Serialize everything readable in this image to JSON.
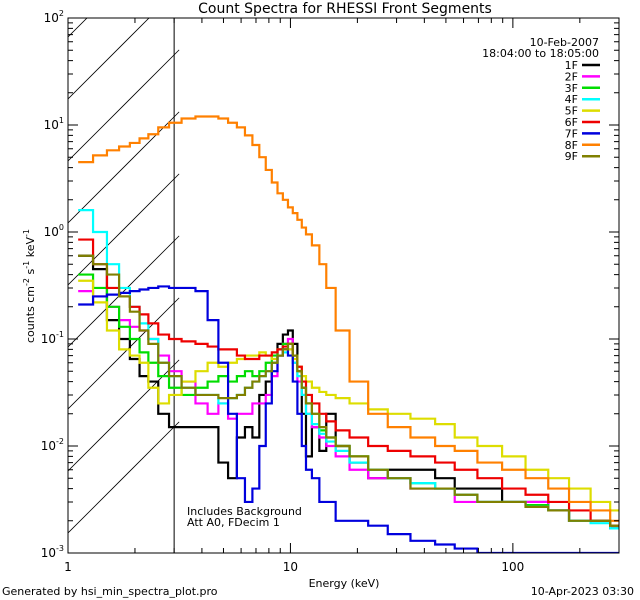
{
  "chart_data": {
    "type": "line",
    "title": "Count Spectra for RHESSI Front Segments",
    "xlabel": "Energy (keV)",
    "ylabel": {
      "base": "counts cm",
      "exp1": "-2",
      "mid": " s",
      "exp2": "-1",
      "end": " keV",
      "exp3": "-1"
    },
    "x_scale": "log",
    "y_scale": "log",
    "xlim": [
      1,
      300
    ],
    "ylim": [
      0.001,
      100
    ],
    "x_ticks": [
      {
        "value": 1,
        "label": "1"
      },
      {
        "value": 10,
        "label": "10"
      },
      {
        "value": 100,
        "label": "100"
      }
    ],
    "y_ticks": [
      {
        "value": 100,
        "base": "10",
        "exp": "2"
      },
      {
        "value": 10,
        "base": "10",
        "exp": "1"
      },
      {
        "value": 1,
        "base": "10",
        "exp": "0"
      },
      {
        "value": 0.1,
        "base": "10",
        "exp": "-1"
      },
      {
        "value": 0.01,
        "base": "10",
        "exp": "-2"
      },
      {
        "value": 0.001,
        "base": "10",
        "exp": "-3"
      }
    ],
    "hatched_region": {
      "x_from": 1,
      "x_to": 3
    },
    "date": "10-Feb-2007",
    "time_range": "18:04:00 to 18:05:00",
    "annotations": [
      "Includes Background",
      "Att A0, FDecim 1"
    ],
    "series": [
      {
        "name": "1F",
        "color": "#000000",
        "energy": [
          1.2,
          1.4,
          1.6,
          1.8,
          2.0,
          2.2,
          2.4,
          2.7,
          3.0,
          3.5,
          4.0,
          4.5,
          5.0,
          5.5,
          6.0,
          6.5,
          7.0,
          7.5,
          8.0,
          8.5,
          9.0,
          9.5,
          10,
          10.5,
          11,
          11.5,
          12,
          13,
          14,
          15,
          17,
          20,
          25,
          30,
          40,
          50,
          60,
          80,
          100,
          130,
          160,
          200,
          250,
          300
        ],
        "counts": [
          0.6,
          0.45,
          0.15,
          0.1,
          0.065,
          0.045,
          0.04,
          0.02,
          0.015,
          0.015,
          0.015,
          0.015,
          0.007,
          0.005,
          0.012,
          0.015,
          0.012,
          0.03,
          0.04,
          0.06,
          0.09,
          0.11,
          0.12,
          0.09,
          0.05,
          0.02,
          0.008,
          0.015,
          0.009,
          0.02,
          0.01,
          0.007,
          0.005,
          0.006,
          0.006,
          0.005,
          0.004,
          0.004,
          0.003,
          0.003,
          0.0025,
          0.002,
          0.002,
          0.0017
        ]
      },
      {
        "name": "2F",
        "color": "#ff00ff",
        "energy": [
          1.2,
          1.4,
          1.6,
          1.8,
          2.0,
          2.2,
          2.4,
          2.7,
          3.0,
          3.5,
          4.0,
          4.5,
          5.0,
          5.5,
          6.0,
          6.5,
          7.0,
          7.5,
          8.0,
          8.5,
          9.0,
          9.5,
          10,
          10.5,
          11,
          11.5,
          12,
          13,
          14,
          15,
          17,
          20,
          25,
          30,
          40,
          50,
          60,
          80,
          100,
          130,
          160,
          200,
          250,
          300
        ],
        "counts": [
          0.28,
          0.25,
          0.2,
          0.15,
          0.13,
          0.12,
          0.1,
          0.07,
          0.05,
          0.04,
          0.025,
          0.02,
          0.025,
          0.018,
          0.02,
          0.02,
          0.025,
          0.025,
          0.03,
          0.045,
          0.07,
          0.09,
          0.1,
          0.06,
          0.04,
          0.03,
          0.02,
          0.015,
          0.012,
          0.01,
          0.008,
          0.006,
          0.005,
          0.005,
          0.004,
          0.004,
          0.003,
          0.003,
          0.003,
          0.003,
          0.0025,
          0.002,
          0.002,
          0.0018
        ]
      },
      {
        "name": "3F",
        "color": "#00dd00",
        "energy": [
          1.2,
          1.4,
          1.6,
          1.8,
          2.0,
          2.2,
          2.4,
          2.7,
          3.0,
          3.5,
          4.0,
          4.5,
          5.0,
          5.5,
          6.0,
          6.5,
          7.0,
          7.5,
          8.0,
          8.5,
          9.0,
          9.5,
          10,
          10.5,
          11,
          11.5,
          12,
          13,
          14,
          15,
          17,
          20,
          25,
          30,
          40,
          50,
          60,
          80,
          100,
          130,
          160,
          200,
          250,
          300
        ],
        "counts": [
          0.4,
          0.3,
          0.2,
          0.13,
          0.1,
          0.075,
          0.06,
          0.045,
          0.035,
          0.03,
          0.035,
          0.04,
          0.045,
          0.04,
          0.045,
          0.05,
          0.045,
          0.05,
          0.06,
          0.07,
          0.08,
          0.09,
          0.09,
          0.07,
          0.05,
          0.035,
          0.025,
          0.02,
          0.014,
          0.012,
          0.01,
          0.008,
          0.006,
          0.005,
          0.0045,
          0.004,
          0.0035,
          0.003,
          0.003,
          0.0028,
          0.0025,
          0.002,
          0.002,
          0.0018
        ]
      },
      {
        "name": "4F",
        "color": "#00ffff",
        "energy": [
          1.2,
          1.4,
          1.6,
          1.8,
          2.0,
          2.2,
          2.4,
          2.7,
          3.0,
          3.5,
          4.0,
          4.5,
          5.0,
          5.5,
          6.0,
          6.5,
          7.0,
          7.5,
          8.0,
          8.5,
          9.0,
          9.5,
          10,
          10.5,
          11,
          11.5,
          12,
          13,
          14,
          15,
          17,
          20,
          25,
          30,
          40,
          50,
          60,
          80,
          100,
          130,
          160,
          200,
          250,
          300
        ],
        "counts": [
          1.6,
          1.0,
          0.5,
          0.3,
          0.2,
          0.14,
          0.1,
          0.06,
          0.045,
          0.035,
          0.03,
          0.03,
          0.025,
          0.028,
          0.03,
          0.035,
          0.04,
          0.045,
          0.05,
          0.06,
          0.07,
          0.075,
          0.08,
          0.06,
          0.045,
          0.03,
          0.02,
          0.016,
          0.013,
          0.011,
          0.009,
          0.007,
          0.006,
          0.005,
          0.0045,
          0.004,
          0.0035,
          0.003,
          0.003,
          0.0027,
          0.0025,
          0.002,
          0.0019,
          0.0017
        ]
      },
      {
        "name": "5F",
        "color": "#dddd00",
        "energy": [
          1.2,
          1.4,
          1.6,
          1.8,
          2.0,
          2.2,
          2.4,
          2.7,
          3.0,
          3.5,
          4.0,
          4.5,
          5.0,
          5.5,
          6.0,
          6.5,
          7.0,
          7.5,
          8.0,
          8.5,
          9.0,
          9.5,
          10,
          10.5,
          11,
          11.5,
          12,
          13,
          14,
          15,
          17,
          20,
          25,
          30,
          40,
          50,
          60,
          80,
          100,
          130,
          160,
          200,
          250,
          300
        ],
        "counts": [
          0.35,
          0.22,
          0.12,
          0.08,
          0.07,
          0.06,
          0.035,
          0.025,
          0.03,
          0.04,
          0.05,
          0.06,
          0.055,
          0.06,
          0.065,
          0.07,
          0.07,
          0.075,
          0.07,
          0.065,
          0.07,
          0.08,
          0.08,
          0.065,
          0.055,
          0.045,
          0.04,
          0.035,
          0.032,
          0.03,
          0.028,
          0.025,
          0.022,
          0.02,
          0.018,
          0.016,
          0.012,
          0.01,
          0.008,
          0.006,
          0.005,
          0.004,
          0.003,
          0.0025
        ]
      },
      {
        "name": "6F",
        "color": "#ee0000",
        "energy": [
          1.2,
          1.4,
          1.6,
          1.8,
          2.0,
          2.2,
          2.4,
          2.7,
          3.0,
          3.5,
          4.0,
          4.5,
          5.0,
          5.5,
          6.0,
          6.5,
          7.0,
          7.5,
          8.0,
          8.5,
          9.0,
          9.5,
          10,
          10.5,
          11,
          11.5,
          12,
          13,
          14,
          15,
          17,
          20,
          25,
          30,
          40,
          50,
          60,
          80,
          100,
          130,
          160,
          200,
          250,
          300
        ],
        "counts": [
          0.85,
          0.5,
          0.3,
          0.25,
          0.2,
          0.17,
          0.14,
          0.11,
          0.1,
          0.095,
          0.09,
          0.085,
          0.08,
          0.08,
          0.07,
          0.065,
          0.065,
          0.07,
          0.07,
          0.075,
          0.08,
          0.085,
          0.09,
          0.07,
          0.055,
          0.04,
          0.03,
          0.025,
          0.02,
          0.017,
          0.014,
          0.012,
          0.01,
          0.009,
          0.008,
          0.007,
          0.006,
          0.005,
          0.004,
          0.0035,
          0.003,
          0.0025,
          0.002,
          0.0018
        ]
      },
      {
        "name": "7F",
        "color": "#0000dd",
        "energy": [
          1.2,
          1.4,
          1.6,
          1.8,
          2.0,
          2.2,
          2.4,
          2.7,
          3.0,
          3.5,
          4.0,
          4.5,
          5.0,
          5.5,
          6.0,
          6.5,
          7.0,
          7.5,
          8.0,
          8.5,
          9.0,
          9.5,
          10,
          10.5,
          11,
          11.5,
          12,
          13,
          14,
          15,
          17,
          20,
          25,
          30,
          40,
          50,
          60,
          80,
          100,
          130,
          160,
          200,
          250,
          300
        ],
        "counts": [
          0.21,
          0.25,
          0.26,
          0.27,
          0.28,
          0.29,
          0.3,
          0.31,
          0.3,
          0.3,
          0.28,
          0.15,
          0.06,
          0.02,
          0.005,
          0.003,
          0.004,
          0.01,
          0.025,
          0.05,
          0.07,
          0.08,
          0.07,
          0.04,
          0.02,
          0.01,
          0.006,
          0.005,
          0.003,
          0.003,
          0.002,
          0.002,
          0.0018,
          0.0015,
          0.0013,
          0.0012,
          0.0011,
          0.001,
          0.001,
          0.001,
          0.001,
          0.001,
          0.001,
          0.001
        ]
      },
      {
        "name": "8F",
        "color": "#ff8000",
        "energy": [
          1.2,
          1.4,
          1.6,
          1.8,
          2.0,
          2.2,
          2.4,
          2.7,
          3.0,
          3.5,
          4.0,
          4.5,
          5.0,
          5.5,
          6.0,
          6.5,
          7.0,
          7.5,
          8.0,
          8.5,
          9.0,
          9.5,
          10,
          10.5,
          11,
          11.5,
          12,
          13,
          14,
          15,
          17,
          20,
          25,
          30,
          40,
          50,
          60,
          80,
          100,
          130,
          160,
          200,
          250,
          300
        ],
        "counts": [
          4.5,
          5.2,
          5.8,
          6.3,
          6.8,
          7.5,
          8.2,
          9.5,
          10.5,
          11.5,
          12,
          12,
          11.5,
          10.5,
          9.5,
          8,
          6.5,
          5,
          3.8,
          2.9,
          2.3,
          2.0,
          1.7,
          1.5,
          1.3,
          1.1,
          0.95,
          0.75,
          0.5,
          0.3,
          0.12,
          0.04,
          0.02,
          0.015,
          0.012,
          0.01,
          0.009,
          0.007,
          0.006,
          0.005,
          0.004,
          0.003,
          0.0025,
          0.002
        ]
      },
      {
        "name": "9F",
        "color": "#808000",
        "energy": [
          1.2,
          1.4,
          1.6,
          1.8,
          2.0,
          2.2,
          2.4,
          2.7,
          3.0,
          3.5,
          4.0,
          4.5,
          5.0,
          5.5,
          6.0,
          6.5,
          7.0,
          7.5,
          8.0,
          8.5,
          9.0,
          9.5,
          10,
          10.5,
          11,
          11.5,
          12,
          13,
          14,
          15,
          17,
          20,
          25,
          30,
          40,
          50,
          60,
          80,
          100,
          130,
          160,
          200,
          250,
          300
        ],
        "counts": [
          0.6,
          0.5,
          0.4,
          0.25,
          0.18,
          0.12,
          0.09,
          0.06,
          0.045,
          0.035,
          0.03,
          0.03,
          0.028,
          0.028,
          0.03,
          0.035,
          0.04,
          0.045,
          0.05,
          0.06,
          0.07,
          0.08,
          0.09,
          0.07,
          0.05,
          0.035,
          0.025,
          0.02,
          0.015,
          0.012,
          0.01,
          0.008,
          0.006,
          0.005,
          0.004,
          0.004,
          0.0035,
          0.003,
          0.003,
          0.0027,
          0.0025,
          0.002,
          0.002,
          0.0018
        ]
      }
    ]
  },
  "footer": {
    "generated_by": "Generated by hsi_min_spectra_plot.pro",
    "timestamp": "10-Apr-2023 03:30"
  }
}
